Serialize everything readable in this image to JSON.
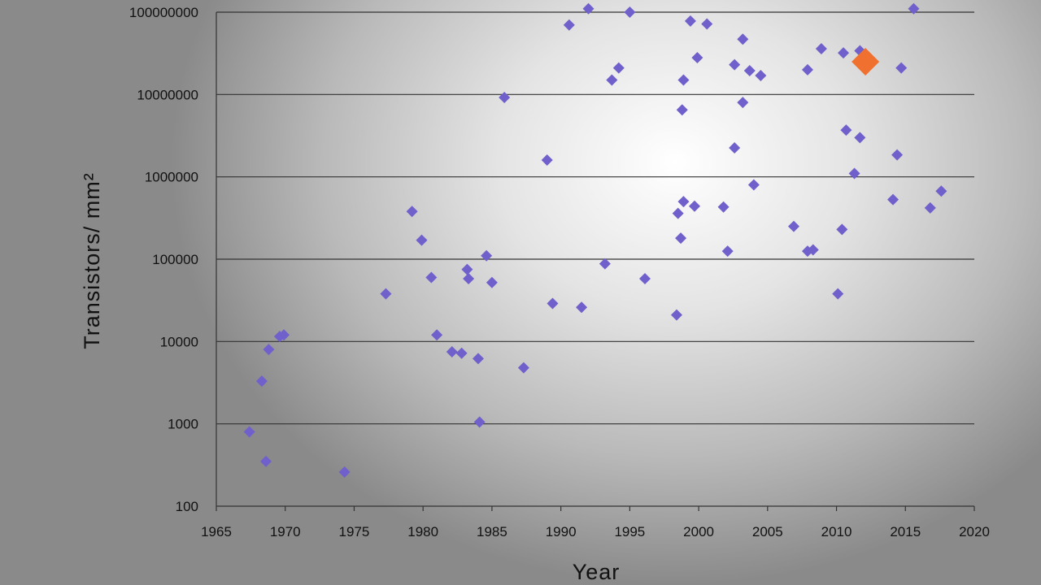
{
  "chart_data": {
    "type": "scatter",
    "title": "",
    "xlabel": "Year",
    "ylabel": "Transistors/ mm²",
    "xlim": [
      1965,
      2020
    ],
    "ylim": [
      100,
      100000000
    ],
    "yscale": "log",
    "x_ticks": [
      "1965",
      "1970",
      "1975",
      "1980",
      "1985",
      "1990",
      "1995",
      "2000",
      "2005",
      "2010",
      "2015",
      "2020"
    ],
    "y_ticks": [
      "100",
      "1000",
      "10000",
      "100000",
      "1000000",
      "10000000",
      "100000000"
    ],
    "grid": "horizontal",
    "legend": "none",
    "series": [
      {
        "color": "#7060cc",
        "marker": "diamond",
        "points": [
          [
            1967.4,
            800
          ],
          [
            1968.3,
            3300
          ],
          [
            1968.6,
            350
          ],
          [
            1968.8,
            8000
          ],
          [
            1969.6,
            11500
          ],
          [
            1969.9,
            12000
          ],
          [
            1974.3,
            260
          ],
          [
            1977.3,
            38000
          ],
          [
            1979.2,
            380000
          ],
          [
            1979.9,
            170000
          ],
          [
            1980.6,
            60000
          ],
          [
            1981.0,
            12000
          ],
          [
            1982.1,
            7500
          ],
          [
            1982.8,
            7200
          ],
          [
            1983.2,
            75000
          ],
          [
            1983.3,
            58000
          ],
          [
            1984.0,
            6200
          ],
          [
            1984.1,
            1050
          ],
          [
            1984.6,
            110000
          ],
          [
            1985.0,
            52000
          ],
          [
            1985.9,
            9200000
          ],
          [
            1987.3,
            4800
          ],
          [
            1989.0,
            1600000
          ],
          [
            1989.4,
            29000
          ],
          [
            1990.6,
            70000000
          ],
          [
            1991.5,
            26000
          ],
          [
            1992.0,
            110000000
          ],
          [
            1993.2,
            88000
          ],
          [
            1993.7,
            15000000
          ],
          [
            1994.2,
            21000000
          ],
          [
            1995.0,
            100000000
          ],
          [
            1996.1,
            58000
          ],
          [
            1998.4,
            21000
          ],
          [
            1998.5,
            360000
          ],
          [
            1998.7,
            180000
          ],
          [
            1998.8,
            6500000
          ],
          [
            1998.9,
            500000
          ],
          [
            1998.9,
            15000000
          ],
          [
            1999.4,
            78000000
          ],
          [
            1999.7,
            440000
          ],
          [
            1999.9,
            28000000
          ],
          [
            2000.6,
            72000000
          ],
          [
            2001.8,
            430000
          ],
          [
            2002.1,
            125000
          ],
          [
            2002.6,
            2250000
          ],
          [
            2002.6,
            23000000
          ],
          [
            2003.2,
            47000000
          ],
          [
            2003.2,
            8000000
          ],
          [
            2003.7,
            19500000
          ],
          [
            2004.0,
            800000
          ],
          [
            2004.5,
            17000000
          ],
          [
            2006.9,
            250000
          ],
          [
            2007.9,
            20000000
          ],
          [
            2007.9,
            125000
          ],
          [
            2008.3,
            130000
          ],
          [
            2008.9,
            36000000
          ],
          [
            2010.1,
            38000
          ],
          [
            2010.4,
            230000
          ],
          [
            2010.5,
            32000000
          ],
          [
            2010.7,
            3700000
          ],
          [
            2011.3,
            1100000
          ],
          [
            2011.7,
            3000000
          ],
          [
            2011.7,
            34000000
          ],
          [
            2014.1,
            530000
          ],
          [
            2014.4,
            1850000
          ],
          [
            2014.7,
            21000000
          ],
          [
            2015.6,
            110000000
          ],
          [
            2016.8,
            420000
          ],
          [
            2017.6,
            670000
          ]
        ]
      },
      {
        "color": "#f07030",
        "marker": "diamond-large",
        "points": [
          [
            2012.1,
            25000000
          ]
        ]
      }
    ]
  }
}
